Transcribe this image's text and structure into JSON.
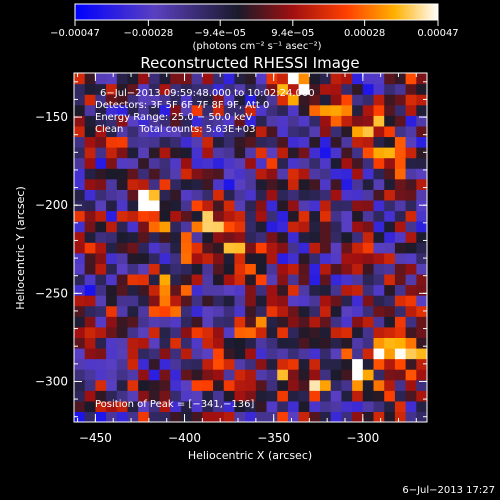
{
  "chart_data": {
    "type": "heatmap",
    "title": "Reconstructed RHESSI Image",
    "xlabel": "Heliocentric X (arcsec)",
    "ylabel": "Heliocentric Y (arcsec)",
    "xlim": [
      -462,
      -264
    ],
    "ylim": [
      -323,
      -125
    ],
    "x_ticks": [
      -450,
      -400,
      -350,
      -300
    ],
    "y_ticks": [
      -150,
      -200,
      -250,
      -300
    ],
    "x_tick_labels": [
      "−450",
      "−400",
      "−350",
      "−300"
    ],
    "y_tick_labels": [
      "−150",
      "−200",
      "−250",
      "−300"
    ],
    "colorbar": {
      "range": [
        -0.00047,
        0.00047
      ],
      "ticks": [
        -0.00047,
        -0.00028,
        -9.4e-05,
        9.4e-05,
        0.00028,
        0.00047
      ],
      "tick_labels": [
        "−0.00047",
        "−0.00028",
        "−9.4e−05",
        "9.4e−05",
        "0.00028",
        "0.00047"
      ],
      "unit_label": "(photons cm⁻² s⁻¹ asec⁻²)",
      "colors": [
        "#0000ff",
        "#5a40c0",
        "#1a1a2a",
        "#a01010",
        "#ff4000",
        "#ffb000",
        "#ffffff"
      ]
    },
    "annotations": [
      "6−Jul−2013 09:59:48.000 to 10:02:24.000",
      "Detectors: 3F 5F 6F 7F 8F 9F, Att 0",
      "Energy Range: 25.0 − 50.0 keV",
      "Clean     Total counts: 5.63E+03"
    ],
    "peak_label": "Position of Peak = [−341,−136]",
    "peak_position": [
      -341,
      -136
    ],
    "hot_spots": [
      {
        "x": -425,
        "y": -200,
        "value": 0.00042
      },
      {
        "x": -418,
        "y": -215,
        "value": 0.00036
      },
      {
        "x": -412,
        "y": -252,
        "value": 0.00045
      },
      {
        "x": -400,
        "y": -232,
        "value": 0.0003
      },
      {
        "x": -385,
        "y": -212,
        "value": 0.00032
      },
      {
        "x": -370,
        "y": -225,
        "value": 0.0003
      },
      {
        "x": -365,
        "y": -275,
        "value": 0.00034
      },
      {
        "x": -345,
        "y": -295,
        "value": 0.0003
      },
      {
        "x": -330,
        "y": -305,
        "value": 0.00038
      },
      {
        "x": -305,
        "y": -298,
        "value": 0.00035
      },
      {
        "x": -290,
        "y": -282,
        "value": 0.00044
      },
      {
        "x": -275,
        "y": -290,
        "value": 0.0004
      },
      {
        "x": -341,
        "y": -136,
        "value": 0.00047
      },
      {
        "x": -325,
        "y": -150,
        "value": 0.00038
      },
      {
        "x": -300,
        "y": -160,
        "value": 0.00036
      },
      {
        "x": -285,
        "y": -175,
        "value": 0.00032
      },
      {
        "x": -440,
        "y": -270,
        "value": 0.0002
      },
      {
        "x": -395,
        "y": -300,
        "value": 0.00022
      },
      {
        "x": -275,
        "y": -140,
        "value": 0.00026
      }
    ],
    "grid": false
  },
  "footer": {
    "timestamp": "6−Jul−2013 17:27"
  }
}
